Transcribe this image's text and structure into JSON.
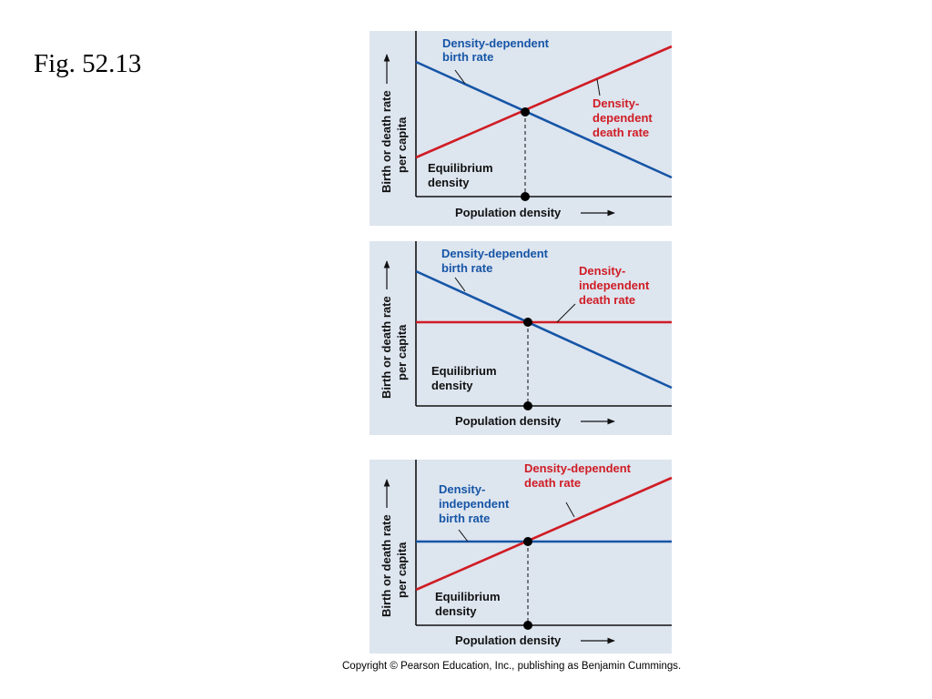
{
  "figure_label": "Fig. 52.13",
  "copyright": "Copyright © Pearson Education, Inc., publishing as Benjamin Cummings.",
  "colors": {
    "panel_bg": "#dde5ef",
    "plot_bg": "#dde5ef",
    "birth_line": "#1655a6",
    "death_line": "#d01c24",
    "axis": "#111111"
  },
  "panels": [
    {
      "y_axis_label_1": "Birth or death rate",
      "y_axis_label_2": "per capita",
      "x_axis_label": "Population density",
      "birth_label": [
        "Density-dependent",
        "birth rate"
      ],
      "death_label": [
        "Density-",
        "dependent",
        "death rate"
      ],
      "equilibrium_label": [
        "Equilibrium",
        "density"
      ]
    },
    {
      "y_axis_label_1": "Birth or death rate",
      "y_axis_label_2": "per capita",
      "x_axis_label": "Population density",
      "birth_label": [
        "Density-dependent",
        "birth rate"
      ],
      "death_label": [
        "Density-",
        "independent",
        "death rate"
      ],
      "equilibrium_label": [
        "Equilibrium",
        "density"
      ]
    },
    {
      "y_axis_label_1": "Birth or death rate",
      "y_axis_label_2": "per capita",
      "x_axis_label": "Population density",
      "birth_label": [
        "Density-",
        "independent",
        "birth rate"
      ],
      "death_label": [
        "Density-dependent",
        "death rate"
      ],
      "equilibrium_label": [
        "Equilibrium",
        "density"
      ]
    }
  ]
}
